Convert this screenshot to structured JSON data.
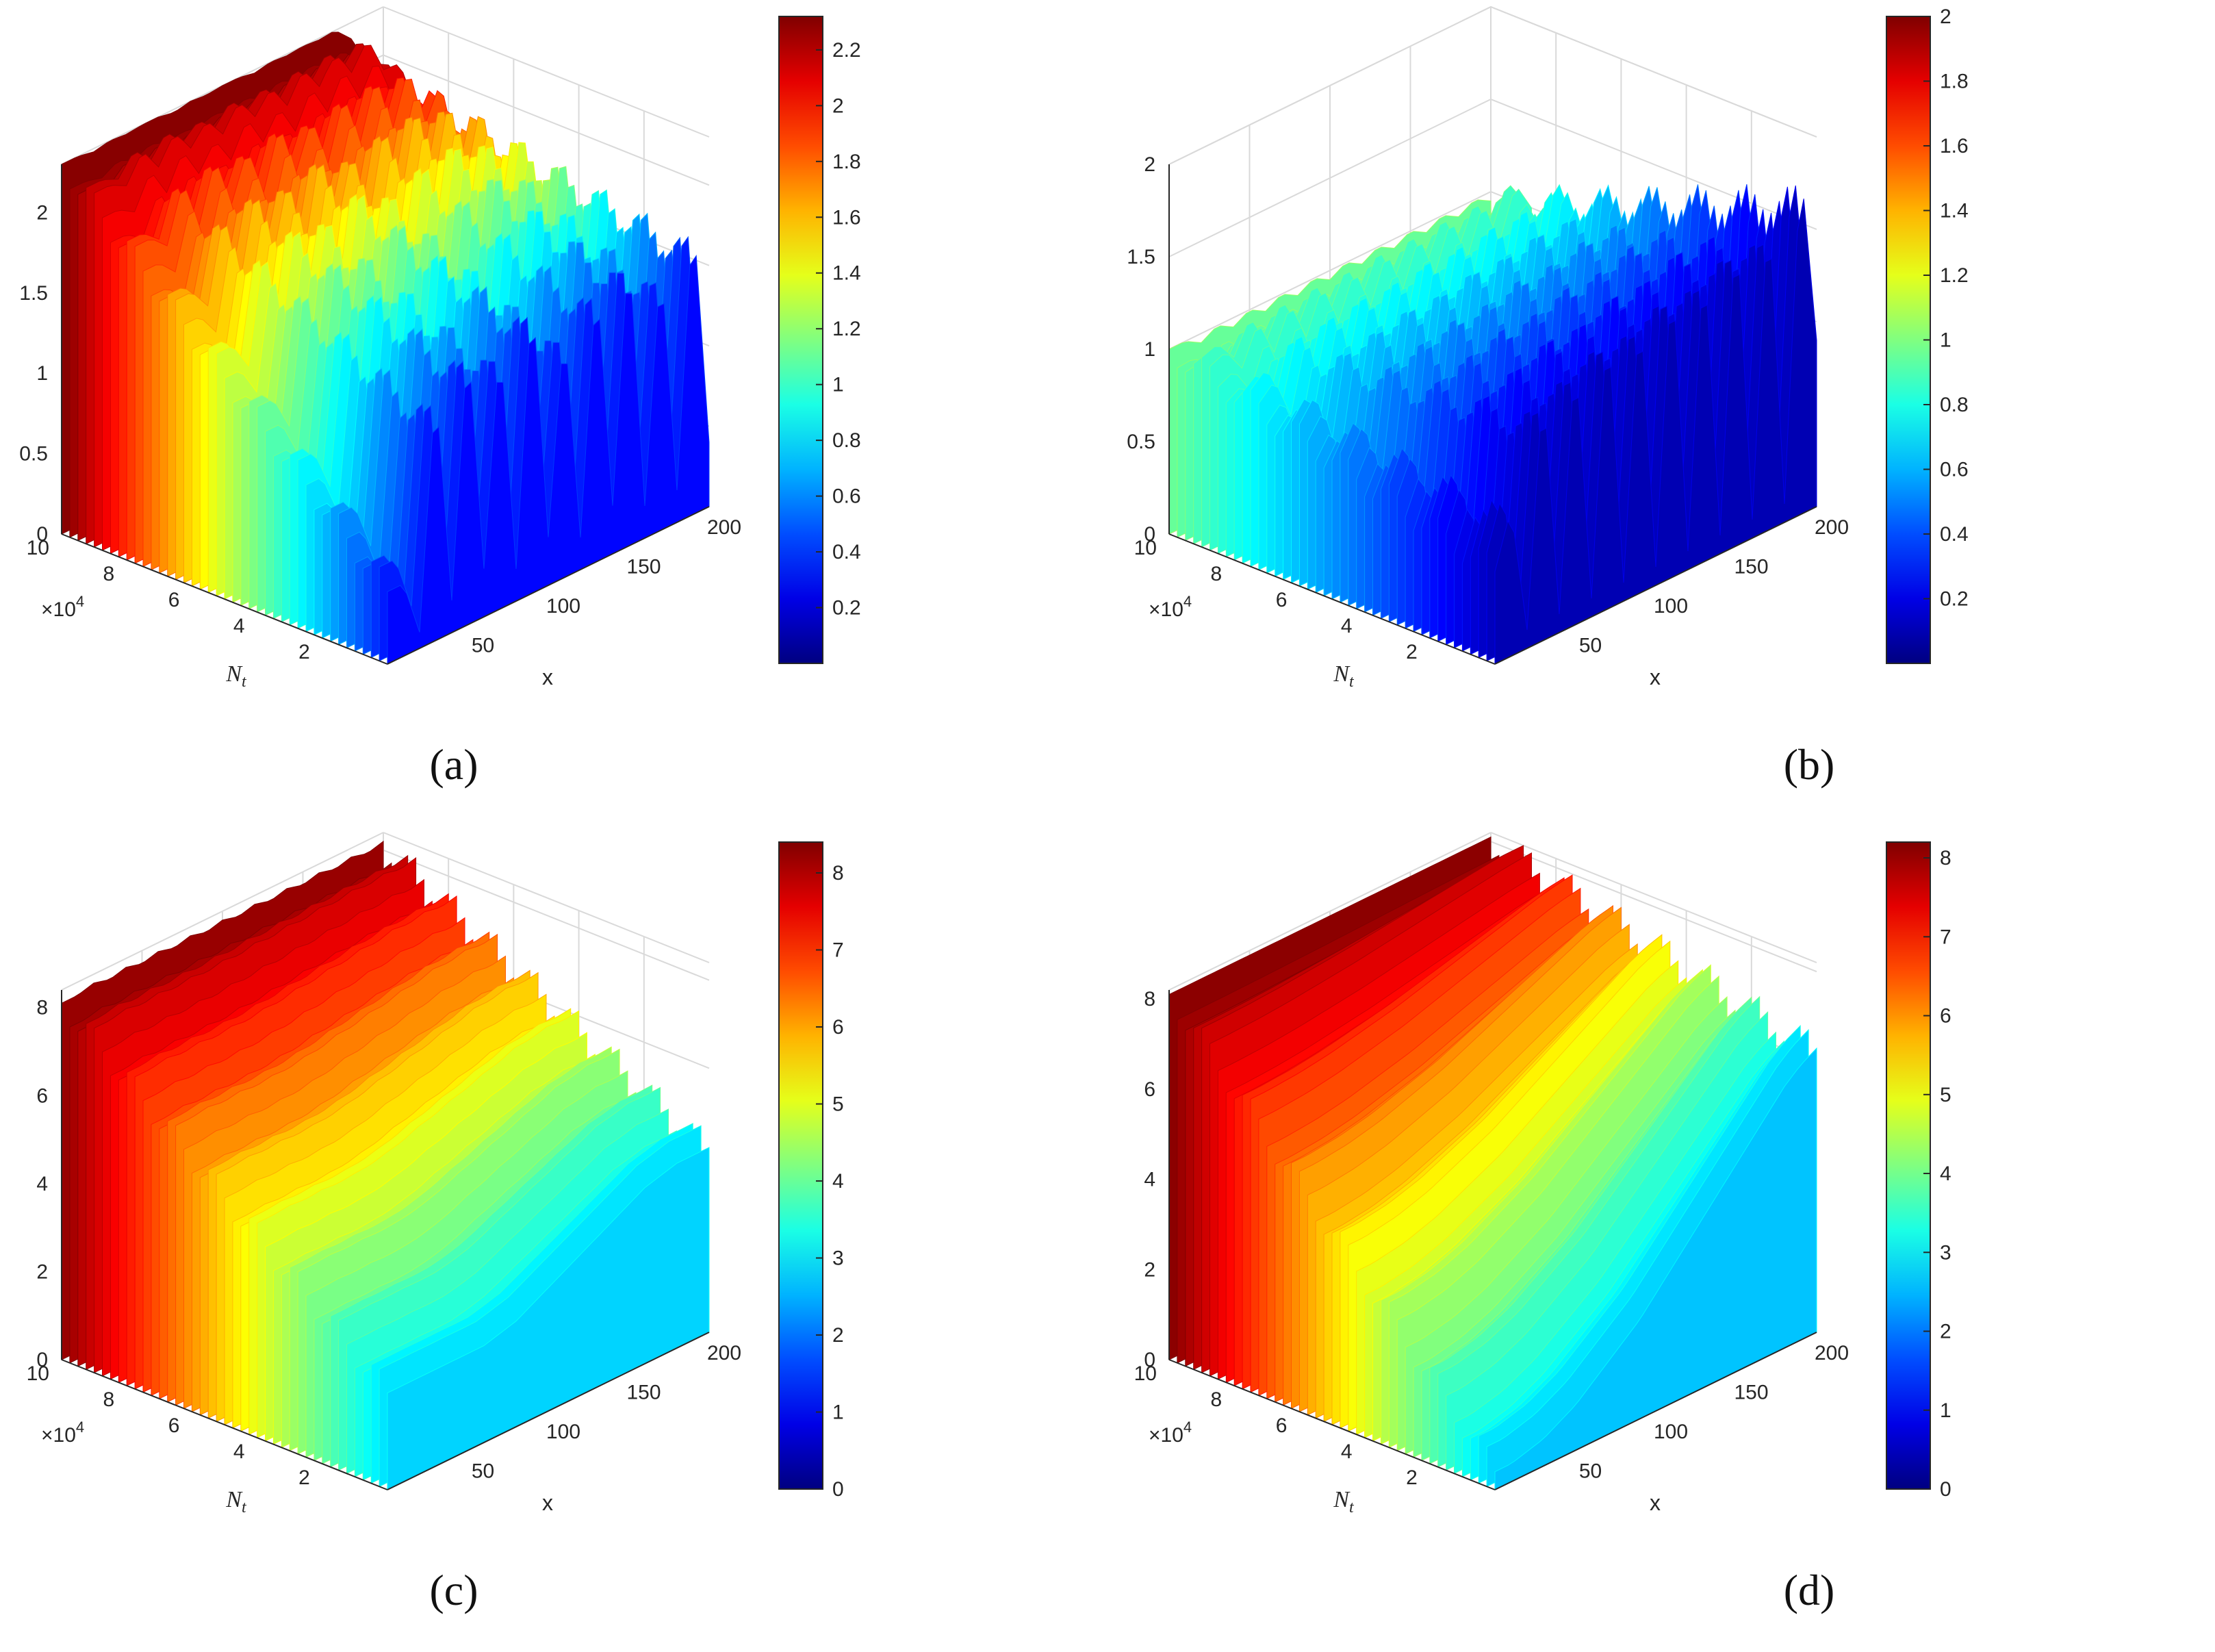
{
  "chart_data": [
    {
      "type": "surface",
      "panel_label": "(a)",
      "xlabel": "x",
      "ylabel": "N_t",
      "y_exponent": "×10^4",
      "x_ticks": [
        "50",
        "100",
        "150",
        "200"
      ],
      "y_ticks": [
        "2",
        "4",
        "6",
        "8",
        "10"
      ],
      "z_ticks": [
        "0",
        "0.5",
        "1",
        "1.5",
        "2"
      ],
      "colorbar_ticks": [
        "0.2",
        "0.4",
        "0.6",
        "0.8",
        "1",
        "1.2",
        "1.4",
        "1.6",
        "1.8",
        "2",
        "2.2"
      ],
      "x_range": [
        0,
        200
      ],
      "y_range": [
        0,
        100000
      ],
      "z_range": [
        0,
        2.3
      ],
      "colorbar_range": [
        0,
        2.32
      ],
      "colormap": "jet",
      "grid": true,
      "contour_on_floor": true,
      "surface_profile": {
        "x": [
          0,
          10,
          20,
          30,
          40,
          50,
          60,
          70,
          80,
          90,
          100,
          110,
          120,
          130,
          140,
          150,
          160,
          170,
          180,
          190,
          200
        ],
        "z_front": [
          0.45,
          0.45,
          0.1,
          1.6,
          0.2,
          1.8,
          0.3,
          1.7,
          0.2,
          1.9,
          0.3,
          1.6,
          0.2,
          1.8,
          0.3,
          1.9,
          0.2,
          1.7,
          0.2,
          1.9,
          0.4
        ],
        "z_back": [
          2.3,
          2.3,
          2.28,
          2.3,
          2.29,
          2.3,
          2.3,
          2.28,
          2.3,
          2.29,
          2.3,
          2.3,
          2.28,
          2.3,
          2.29,
          2.3,
          2.29,
          2.3,
          2.2,
          2.0,
          1.8
        ],
        "ridge_count": 8
      }
    },
    {
      "type": "surface",
      "panel_label": "(b)",
      "xlabel": "x",
      "ylabel": "N_t",
      "y_exponent": "×10^4",
      "x_ticks": [
        "50",
        "100",
        "150",
        "200"
      ],
      "y_ticks": [
        "2",
        "4",
        "6",
        "8",
        "10"
      ],
      "z_ticks": [
        "0",
        "0.5",
        "1",
        "1.5",
        "2"
      ],
      "colorbar_ticks": [
        "0.2",
        "0.4",
        "0.6",
        "0.8",
        "1",
        "1.2",
        "1.4",
        "1.6",
        "1.8",
        "2"
      ],
      "x_range": [
        0,
        200
      ],
      "y_range": [
        0,
        100000
      ],
      "z_range": [
        0,
        2.0
      ],
      "colorbar_range": [
        0,
        2.0
      ],
      "colormap": "jet",
      "grid": true,
      "contour_on_floor": true,
      "surface_profile": {
        "x": [
          0,
          10,
          20,
          30,
          40,
          50,
          60,
          70,
          80,
          90,
          100,
          110,
          120,
          130,
          140,
          150,
          160,
          170,
          180,
          190,
          200
        ],
        "z_front": [
          0.5,
          0.8,
          0.1,
          1.4,
          0.1,
          1.5,
          0.1,
          1.6,
          0.1,
          1.6,
          0.1,
          1.7,
          0.1,
          1.7,
          0.1,
          1.8,
          0.1,
          1.8,
          0.1,
          1.9,
          0.9
        ],
        "z_back": [
          1.0,
          1.0,
          0.95,
          1.0,
          0.95,
          1.0,
          0.95,
          1.0,
          0.95,
          1.0,
          0.95,
          1.0,
          0.95,
          1.0,
          0.95,
          1.0,
          0.95,
          1.0,
          0.95,
          1.0,
          0.95
        ],
        "ridge_count": 7
      }
    },
    {
      "type": "surface",
      "panel_label": "(c)",
      "xlabel": "x",
      "ylabel": "N_t",
      "y_exponent": "×10^4",
      "x_ticks": [
        "50",
        "100",
        "150",
        "200"
      ],
      "y_ticks": [
        "2",
        "4",
        "6",
        "8",
        "10"
      ],
      "z_ticks": [
        "0",
        "2",
        "4",
        "6",
        "8"
      ],
      "colorbar_ticks": [
        "0",
        "1",
        "2",
        "3",
        "4",
        "5",
        "6",
        "7",
        "8"
      ],
      "x_range": [
        0,
        200
      ],
      "y_range": [
        0,
        100000
      ],
      "z_range": [
        0,
        8.4
      ],
      "colorbar_range": [
        0,
        8.4
      ],
      "colormap": "jet",
      "grid": true,
      "contour_on_floor": true,
      "surface_profile": {
        "x": [
          0,
          10,
          20,
          30,
          40,
          50,
          60,
          70,
          80,
          90,
          100,
          110,
          120,
          130,
          140,
          150,
          160,
          170,
          180,
          190,
          200
        ],
        "z_front": [
          2.2,
          2.2,
          2.2,
          2.2,
          2.2,
          2.2,
          2.2,
          2.3,
          2.4,
          2.6,
          2.8,
          3.0,
          3.2,
          3.4,
          3.6,
          3.8,
          4.0,
          4.1,
          4.2,
          4.2,
          4.2
        ],
        "z_back": [
          8.1,
          8.1,
          8.2,
          8.1,
          8.2,
          8.1,
          8.2,
          8.1,
          8.2,
          8.1,
          8.2,
          8.1,
          8.2,
          8.1,
          8.2,
          8.1,
          8.2,
          8.1,
          8.2,
          8.1,
          8.2
        ],
        "ridge_count": 8
      }
    },
    {
      "type": "surface",
      "panel_label": "(d)",
      "xlabel": "x",
      "ylabel": "N_t",
      "y_exponent": "×10^4",
      "x_ticks": [
        "50",
        "100",
        "150",
        "200"
      ],
      "y_ticks": [
        "2",
        "4",
        "6",
        "8",
        "10"
      ],
      "z_ticks": [
        "0",
        "2",
        "4",
        "6",
        "8"
      ],
      "colorbar_ticks": [
        "0",
        "1",
        "2",
        "3",
        "4",
        "5",
        "6",
        "7",
        "8"
      ],
      "x_range": [
        0,
        200
      ],
      "y_range": [
        0,
        100000
      ],
      "z_range": [
        0,
        8.2
      ],
      "colorbar_range": [
        0,
        8.2
      ],
      "colormap": "jet",
      "grid": true,
      "contour_on_floor": false,
      "surface_profile": {
        "x": [
          0,
          10,
          20,
          30,
          40,
          50,
          60,
          70,
          80,
          90,
          100,
          110,
          120,
          130,
          140,
          150,
          160,
          170,
          180,
          190,
          200
        ],
        "z_front": [
          0.4,
          0.4,
          0.5,
          0.6,
          0.8,
          1.0,
          1.3,
          1.6,
          1.9,
          2.2,
          2.6,
          3.0,
          3.4,
          3.8,
          4.2,
          4.6,
          5.0,
          5.4,
          5.8,
          6.1,
          6.3
        ],
        "z_back": [
          8.1,
          8.1,
          8.1,
          8.1,
          8.1,
          8.1,
          8.1,
          8.1,
          8.1,
          8.1,
          8.1,
          8.1,
          8.1,
          8.1,
          8.1,
          8.1,
          8.1,
          8.1,
          8.1,
          8.1,
          8.1
        ],
        "ridge_count": 7
      }
    }
  ]
}
